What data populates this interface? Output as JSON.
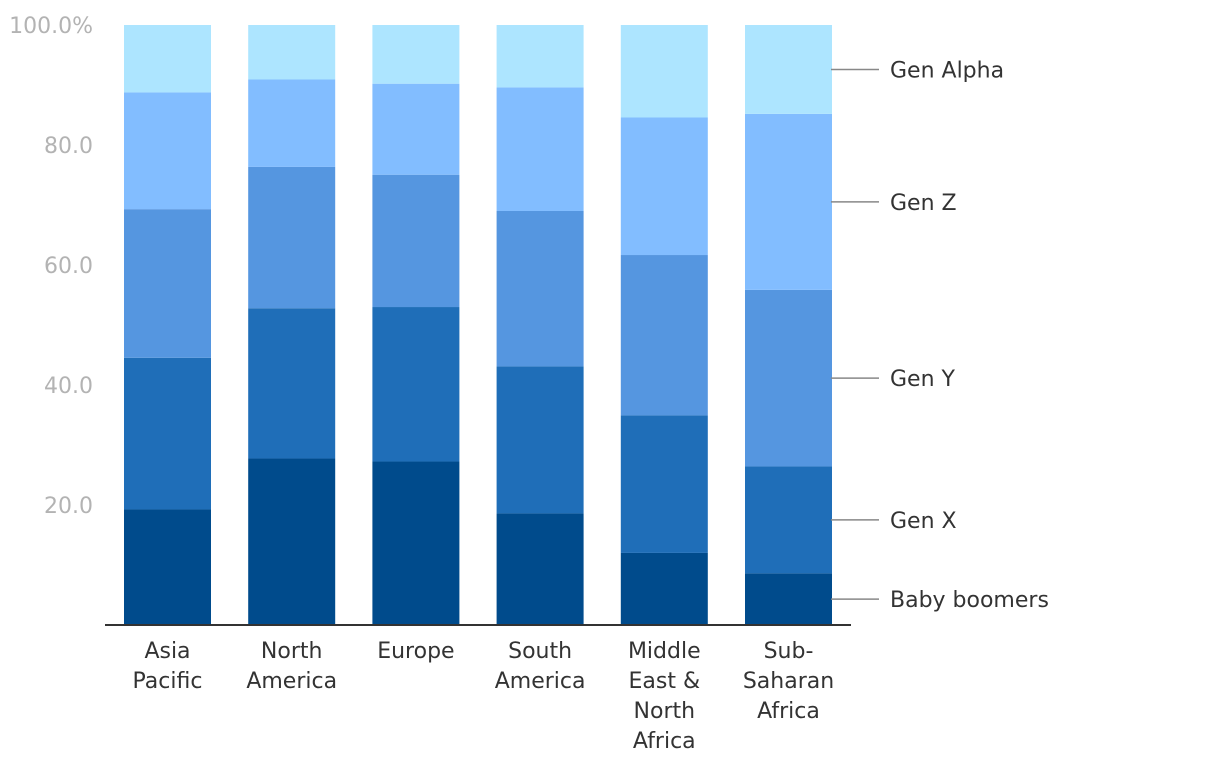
{
  "chart_data": {
    "type": "bar",
    "stacked": true,
    "title": "",
    "xlabel": "",
    "ylabel": "",
    "ylim": [
      0,
      100
    ],
    "yticks": [
      "20.0",
      "40.0",
      "60.0",
      "80.0",
      "100.0%"
    ],
    "ytick_values": [
      20,
      40,
      60,
      80,
      100
    ],
    "grid": false,
    "legend_position": "right",
    "categories": [
      [
        "Asia",
        "Pacific"
      ],
      [
        "North",
        "America"
      ],
      [
        "Europe"
      ],
      [
        "South",
        "America"
      ],
      [
        "Middle",
        "East &",
        "North",
        "Africa"
      ],
      [
        "Sub-",
        "Saharan",
        "Africa"
      ]
    ],
    "series": [
      {
        "name": "Baby boomers",
        "color": "#004b8c",
        "values": [
          19.2,
          27.8,
          27.3,
          18.6,
          12.0,
          8.6
        ]
      },
      {
        "name": "Gen X",
        "color": "#1f6eb8",
        "values": [
          25.2,
          25.1,
          25.8,
          24.5,
          22.9,
          17.8
        ]
      },
      {
        "name": "Gen Y",
        "color": "#5596e0",
        "values": [
          24.7,
          23.6,
          22.1,
          25.9,
          26.7,
          29.4
        ]
      },
      {
        "name": "Gen Z",
        "color": "#82bdff",
        "values": [
          19.4,
          14.6,
          15.2,
          20.6,
          22.9,
          29.3
        ]
      },
      {
        "name": "Gen Alpha",
        "color": "#ade5ff",
        "values": [
          11.2,
          9.1,
          9.8,
          10.4,
          15.4,
          14.8
        ]
      }
    ]
  }
}
